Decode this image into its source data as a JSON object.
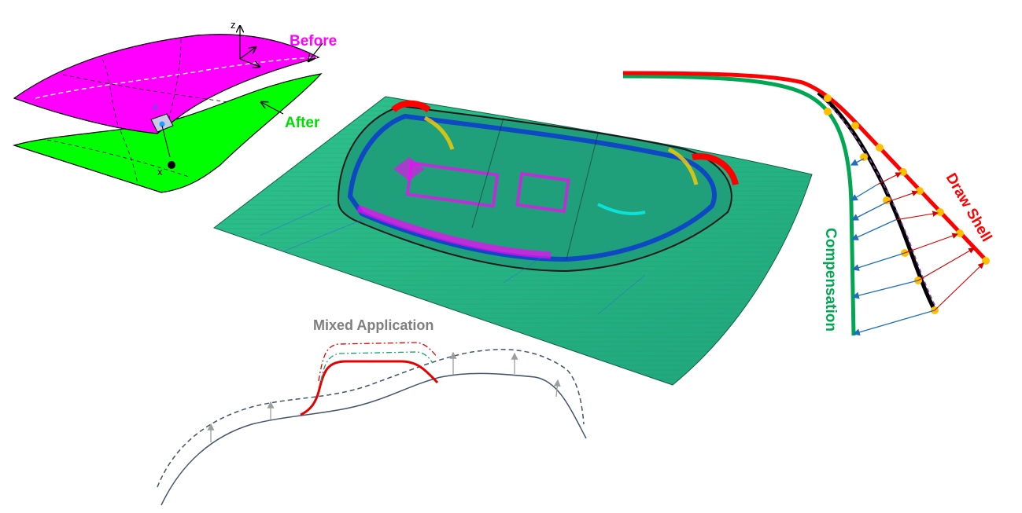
{
  "surface_panel": {
    "before_label": "Before",
    "after_label": "After",
    "axis_z": "z",
    "axis_x_top": "x",
    "axis_x_bottom": "x",
    "before_color": "#ff00ff",
    "after_color": "#00ff00"
  },
  "mixed_panel": {
    "title": "Mixed Application",
    "title_color": "#7f7f7f",
    "curve_color": "#44546a",
    "highlight_color": "#e60000"
  },
  "compensation_panel": {
    "draw_shell_label": "Draw Shell",
    "compensation_label": "Compensation",
    "draw_shell_color": "#ff0000",
    "compensation_color": "#00a651",
    "arrow_color": "#1f6fbf",
    "node_color": "#ffc000"
  },
  "mesh_panel": {
    "icon": "stamped-panel-mesh-render"
  }
}
